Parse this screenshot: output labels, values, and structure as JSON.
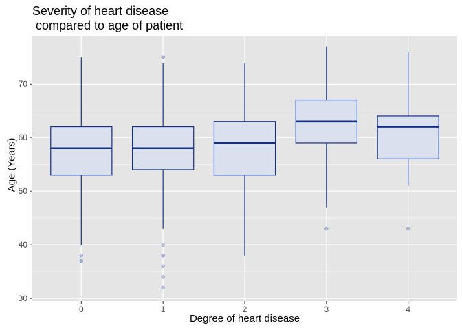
{
  "chart_data": {
    "type": "boxplot",
    "title": "Severity of heart disease\n compared to age of patient",
    "xlabel": "Degree of heart disease",
    "ylabel": "Age (Years)",
    "categories": [
      "0",
      "1",
      "2",
      "3",
      "4"
    ],
    "ylim": [
      29.5,
      79
    ],
    "yticks": [
      30,
      40,
      50,
      60,
      70
    ],
    "yticklabels": [
      "30",
      "40",
      "50",
      "60",
      "70"
    ],
    "grid": true,
    "colors": {
      "panel": "#e5e5e5",
      "grid": "#ffffff",
      "box_fill": "#dbe0ee",
      "box_line": "#13308a",
      "median": "#13308a",
      "outlier": "#8f9cc8"
    },
    "boxes": [
      {
        "category": "0",
        "whisker_low": 40,
        "q1": 53,
        "median": 58,
        "q3": 62,
        "whisker_high": 75,
        "outliers": [
          38,
          37,
          37
        ]
      },
      {
        "category": "1",
        "whisker_low": 43,
        "q1": 54,
        "median": 58,
        "q3": 62,
        "whisker_high": 74,
        "outliers": [
          75,
          75,
          40,
          38,
          38,
          36,
          34,
          32
        ]
      },
      {
        "category": "2",
        "whisker_low": 38,
        "q1": 53,
        "median": 59,
        "q3": 63,
        "whisker_high": 74,
        "outliers": []
      },
      {
        "category": "3",
        "whisker_low": 47,
        "q1": 59,
        "median": 63,
        "q3": 67,
        "whisker_high": 77,
        "outliers": [
          43
        ]
      },
      {
        "category": "4",
        "whisker_low": 51,
        "q1": 56,
        "median": 62,
        "q3": 64,
        "whisker_high": 76,
        "outliers": [
          43
        ]
      }
    ]
  }
}
